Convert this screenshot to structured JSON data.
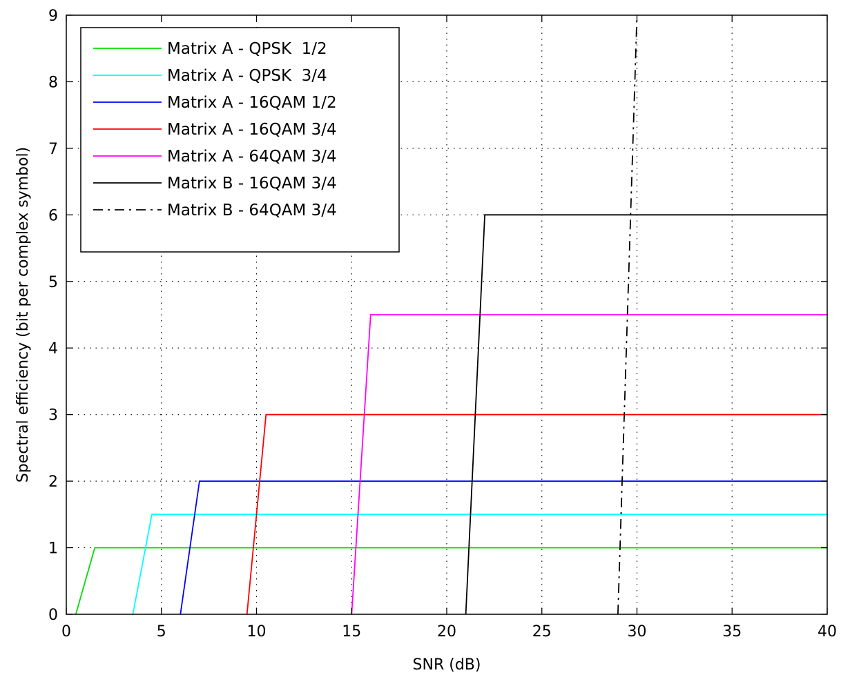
{
  "chart_data": {
    "type": "line",
    "xlabel": "SNR (dB)",
    "ylabel": "Spectral efficiency (bit per complex symbol)",
    "xlim": [
      0,
      40
    ],
    "ylim": [
      0,
      9
    ],
    "xticks": [
      0,
      5,
      10,
      15,
      20,
      25,
      30,
      35,
      40
    ],
    "yticks": [
      0,
      1,
      2,
      3,
      4,
      5,
      6,
      7,
      8,
      9
    ],
    "grid": true,
    "legend_position": "top-left",
    "series": [
      {
        "name": "Matrix A - QPSK  1/2",
        "color": "#00e000",
        "dash": "solid",
        "x": [
          0.5,
          1.5,
          40
        ],
        "y": [
          0,
          1,
          1
        ]
      },
      {
        "name": "Matrix A - QPSK  3/4",
        "color": "#00ffff",
        "dash": "solid",
        "x": [
          3.5,
          4.5,
          40
        ],
        "y": [
          0,
          1.5,
          1.5
        ]
      },
      {
        "name": "Matrix A - 16QAM 1/2",
        "color": "#0000ff",
        "dash": "solid",
        "x": [
          6,
          7,
          40
        ],
        "y": [
          0,
          2,
          2
        ]
      },
      {
        "name": "Matrix A - 16QAM 3/4",
        "color": "#ff0000",
        "dash": "solid",
        "x": [
          9.5,
          10.5,
          40
        ],
        "y": [
          0,
          3,
          3
        ]
      },
      {
        "name": "Matrix A - 64QAM 3/4",
        "color": "#ff00ff",
        "dash": "solid",
        "x": [
          15,
          16,
          40
        ],
        "y": [
          0,
          4.5,
          4.5
        ]
      },
      {
        "name": "Matrix B - 16QAM 3/4",
        "color": "#000000",
        "dash": "solid",
        "x": [
          21,
          22,
          40
        ],
        "y": [
          0,
          6,
          6
        ]
      },
      {
        "name": "Matrix B - 64QAM 3/4",
        "color": "#000000",
        "dash": "dashdot",
        "x": [
          29,
          30,
          30
        ],
        "y": [
          0,
          9,
          9
        ]
      }
    ]
  }
}
